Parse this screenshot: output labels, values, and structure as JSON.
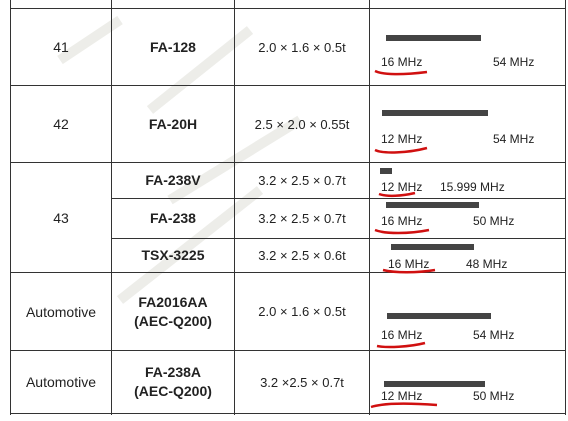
{
  "rows": [
    {
      "series": "41",
      "model": "FA-128",
      "size": "2.0 × 1.6 × 0.5t",
      "freq_min": "16 MHz",
      "freq_max": "54 MHz"
    },
    {
      "series": "42",
      "model": "FA-20H",
      "size": "2.5 × 2.0 × 0.55t",
      "freq_min": "12 MHz",
      "freq_max": "54 MHz"
    },
    {
      "series": "43",
      "model": "FA-238V",
      "size": "3.2 × 2.5 × 0.7t",
      "freq_min": "12 MHz",
      "freq_max": "15.999 MHz"
    },
    {
      "series": "",
      "model": "FA-238",
      "size": "3.2 × 2.5 × 0.7t",
      "freq_min": "16 MHz",
      "freq_max": "50 MHz"
    },
    {
      "series": "",
      "model": "TSX-3225",
      "size": "3.2 × 2.5 × 0.6t",
      "freq_min": "16 MHz",
      "freq_max": "48 MHz"
    },
    {
      "series": "Automotive",
      "model_line1": "FA2016AA",
      "model_line2": "(AEC-Q200)",
      "size": "2.0 × 1.6 × 0.5t",
      "freq_min": "16 MHz",
      "freq_max": "54 MHz"
    },
    {
      "series": "Automotive",
      "model_line1": "FA-238A",
      "model_line2": "(AEC-Q200)",
      "size": "3.2 ×2.5 × 0.7t",
      "freq_min": "12 MHz",
      "freq_max": "50 MHz"
    }
  ],
  "colors": {
    "grid": "#333333",
    "bar": "#444444",
    "marker": "#d01010"
  }
}
